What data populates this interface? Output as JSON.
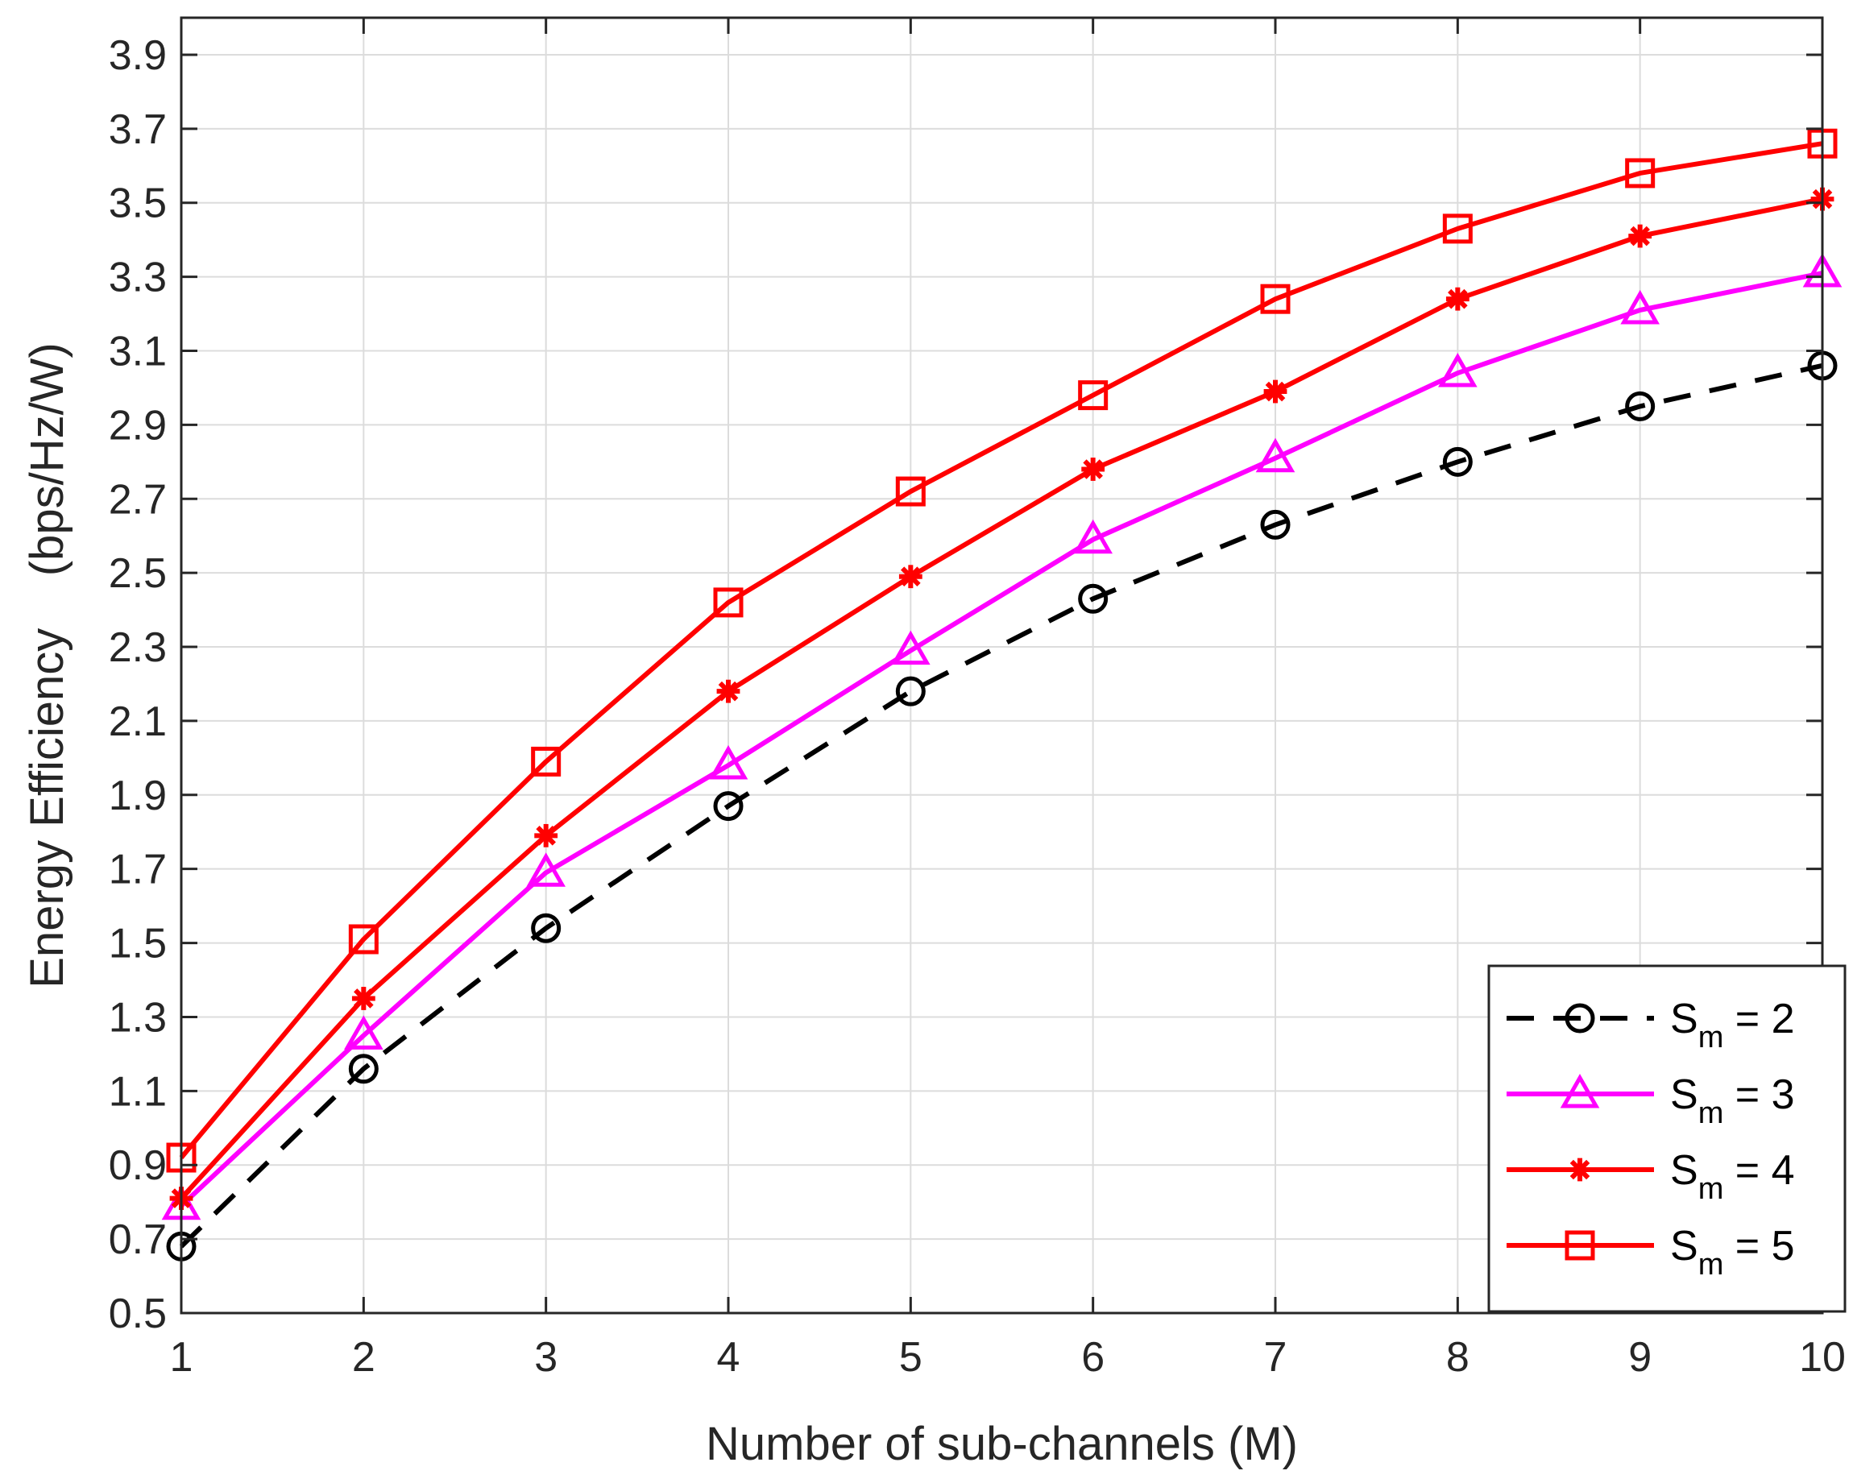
{
  "chart_data": {
    "type": "line",
    "title": "",
    "xlabel": "Number of sub-channels (M)",
    "ylabel": "Energy Efficiency    (bps/Hz/W)",
    "x": [
      1,
      2,
      3,
      4,
      5,
      6,
      7,
      8,
      9,
      10
    ],
    "xlim": [
      1,
      10
    ],
    "ylim": [
      0.5,
      4.0
    ],
    "xticks": [
      "1",
      "2",
      "3",
      "4",
      "5",
      "6",
      "7",
      "8",
      "9",
      "10"
    ],
    "yticks": [
      "0.5",
      "0.7",
      "0.9",
      "1.1",
      "1.3",
      "1.5",
      "1.7",
      "1.9",
      "2.1",
      "2.3",
      "2.5",
      "2.7",
      "2.9",
      "3.1",
      "3.3",
      "3.5",
      "3.7",
      "3.9"
    ],
    "grid": true,
    "legend_position": "bottom-right",
    "series": [
      {
        "name": "Sm = 2",
        "label_main": "S",
        "label_sub": "m",
        "label_rest": " = 2",
        "color": "#000000",
        "line_style": "dashed",
        "marker": "circle",
        "values": [
          0.68,
          1.16,
          1.54,
          1.87,
          2.18,
          2.43,
          2.63,
          2.8,
          2.95,
          3.06
        ]
      },
      {
        "name": "Sm = 3",
        "label_main": "S",
        "label_sub": "m",
        "label_rest": " = 3",
        "color": "#FF00FF",
        "line_style": "solid",
        "marker": "triangle",
        "values": [
          0.79,
          1.25,
          1.69,
          1.98,
          2.29,
          2.59,
          2.81,
          3.04,
          3.21,
          3.31
        ]
      },
      {
        "name": "Sm = 4",
        "label_main": "S",
        "label_sub": "m",
        "label_rest": " = 4",
        "color": "#FF0000",
        "line_style": "solid",
        "marker": "asterisk",
        "values": [
          0.81,
          1.35,
          1.79,
          2.18,
          2.49,
          2.78,
          2.99,
          3.24,
          3.41,
          3.51
        ]
      },
      {
        "name": "Sm = 5",
        "label_main": "S",
        "label_sub": "m",
        "label_rest": " = 5",
        "color": "#FF0000",
        "line_style": "solid",
        "marker": "square",
        "values": [
          0.92,
          1.51,
          1.99,
          2.42,
          2.72,
          2.98,
          3.24,
          3.43,
          3.58,
          3.66
        ]
      }
    ]
  }
}
